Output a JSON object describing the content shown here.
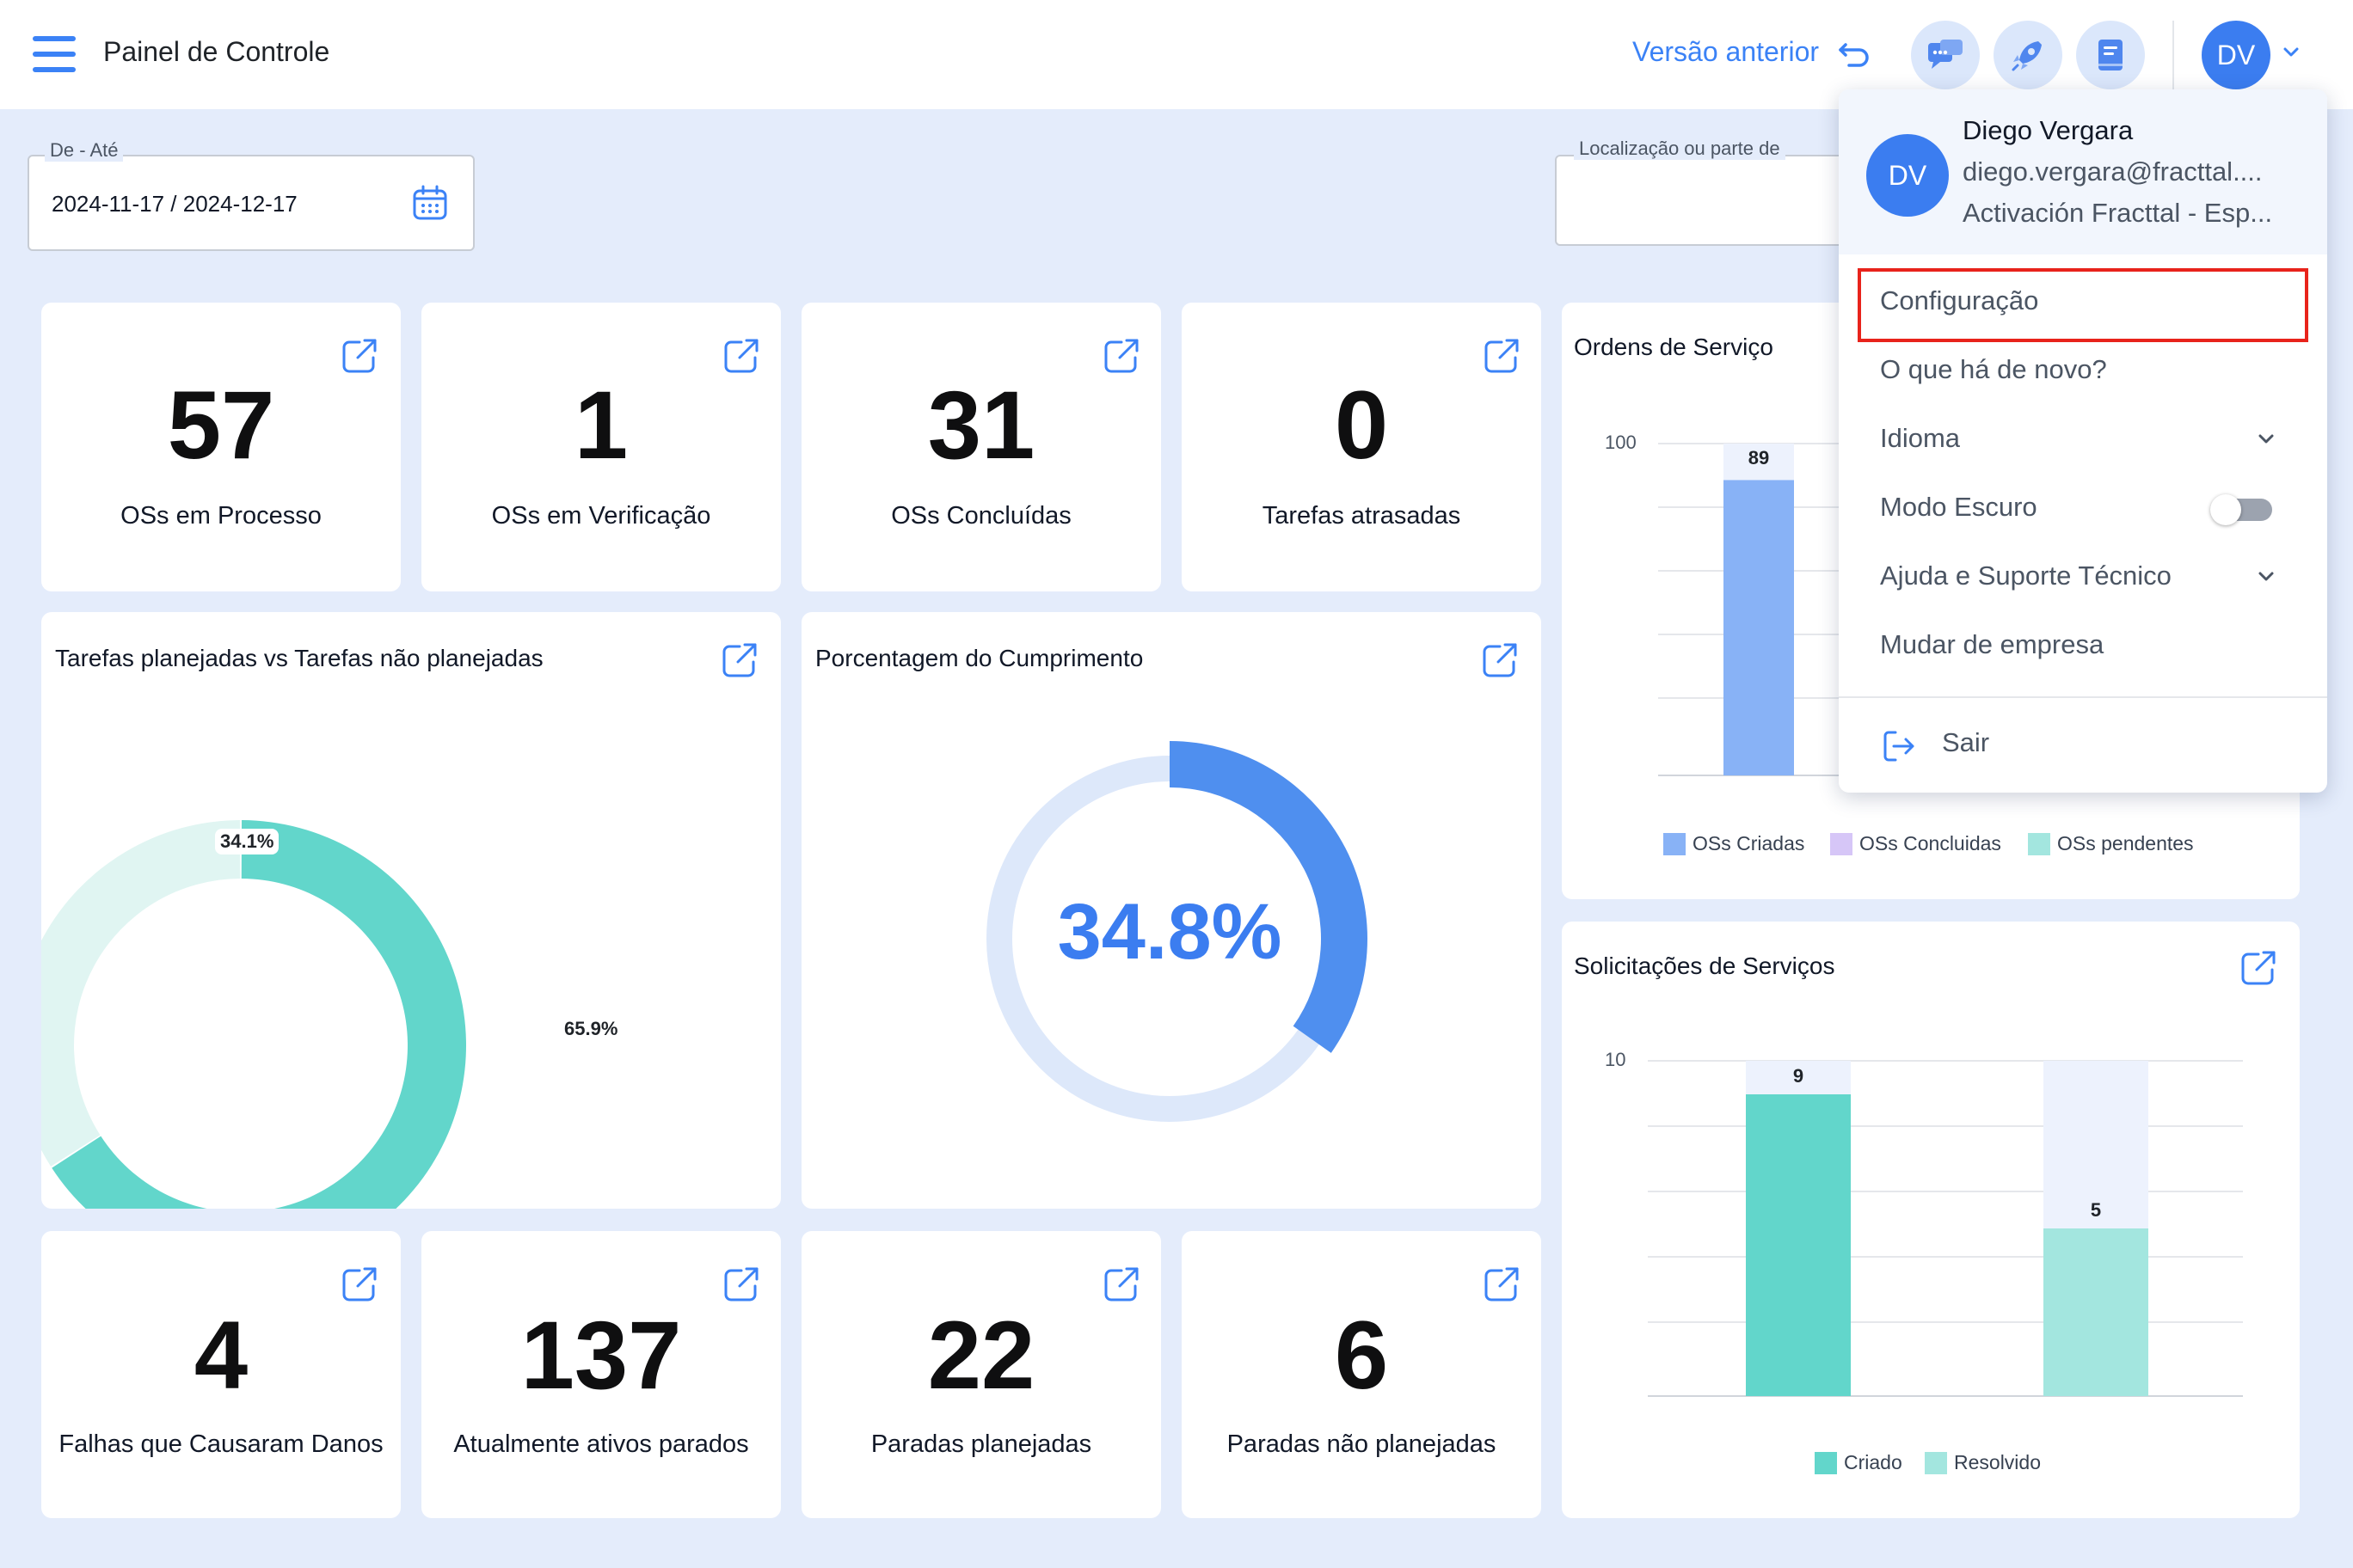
{
  "header": {
    "title": "Painel de Controle",
    "prev_version": "Versão anterior",
    "avatar_initials": "DV"
  },
  "filters": {
    "date_label": "De - Até",
    "date_value": "2024-11-17 / 2024-12-17",
    "location_label": "Localização ou parte de"
  },
  "kpis_top": [
    {
      "value": "57",
      "label": "OSs em Processo"
    },
    {
      "value": "1",
      "label": "OSs em Verificação"
    },
    {
      "value": "31",
      "label": "OSs Concluídas"
    },
    {
      "value": "0",
      "label": "Tarefas atrasadas"
    }
  ],
  "kpis_bottom": [
    {
      "value": "4",
      "label": "Falhas que Causaram Danos"
    },
    {
      "value": "137",
      "label": "Atualmente ativos parados"
    },
    {
      "value": "22",
      "label": "Paradas planejadas"
    },
    {
      "value": "6",
      "label": "Paradas não planejadas"
    }
  ],
  "donut_card": {
    "title": "Tarefas planejadas vs Tarefas não planejadas",
    "label_a": "34.1%",
    "label_b": "65.9%"
  },
  "gauge_card": {
    "title": "Porcentagem do Cumprimento",
    "value": "34.8%"
  },
  "orders_card": {
    "title": "Ordens de Serviço",
    "tick_top": "100",
    "bar_label": "89",
    "legend": [
      "OSs Criadas",
      "OSs Concluidas",
      "OSs pendentes"
    ]
  },
  "requests_card": {
    "title": "Solicitações de Serviços",
    "tick_top": "10",
    "bar1_label": "9",
    "bar2_label": "5",
    "legend": [
      "Criado",
      "Resolvido"
    ]
  },
  "chart_data": [
    {
      "type": "pie",
      "categories": [
        "",
        ""
      ],
      "values": [
        34.1,
        65.9
      ],
      "colors": [
        "#e0f5f2",
        "#62d6cb"
      ]
    },
    {
      "type": "pie",
      "title": "Porcentagem do Cumprimento",
      "values": [
        34.8
      ],
      "colors": [
        "#4f8fef",
        "#dde8fa"
      ]
    },
    {
      "type": "bar",
      "title": "Ordens de Serviço",
      "series": [
        {
          "name": "OSs Criadas",
          "values": [
            89
          ]
        }
      ],
      "legend": [
        "OSs Criadas",
        "OSs Concluidas",
        "OSs pendentes"
      ],
      "ylim": [
        0,
        100
      ]
    },
    {
      "type": "bar",
      "title": "Solicitações de Serviços",
      "series": [
        {
          "name": "Criado",
          "values": [
            9
          ]
        },
        {
          "name": "Resolvido",
          "values": [
            5
          ]
        }
      ],
      "ylim": [
        0,
        10
      ]
    }
  ],
  "menu": {
    "name": "Diego Vergara",
    "email": "diego.vergara@fracttal....",
    "company": "Activación Fracttal - Esp...",
    "avatar_initials": "DV",
    "items": [
      "Configuração",
      "O que há de novo?",
      "Idioma",
      "Modo Escuro",
      "Ajuda e Suporte Técnico",
      "Mudar de empresa"
    ],
    "logout": "Sair",
    "dark_mode": false
  },
  "colors": {
    "accent": "#3b82f6",
    "teal": "#62d6cb",
    "teal_light": "#a3e6df",
    "bar_blue": "#88b2f6",
    "lilac": "#d6c6f7",
    "highlight_border": "#e8231b",
    "background": "#e4ecfb"
  }
}
